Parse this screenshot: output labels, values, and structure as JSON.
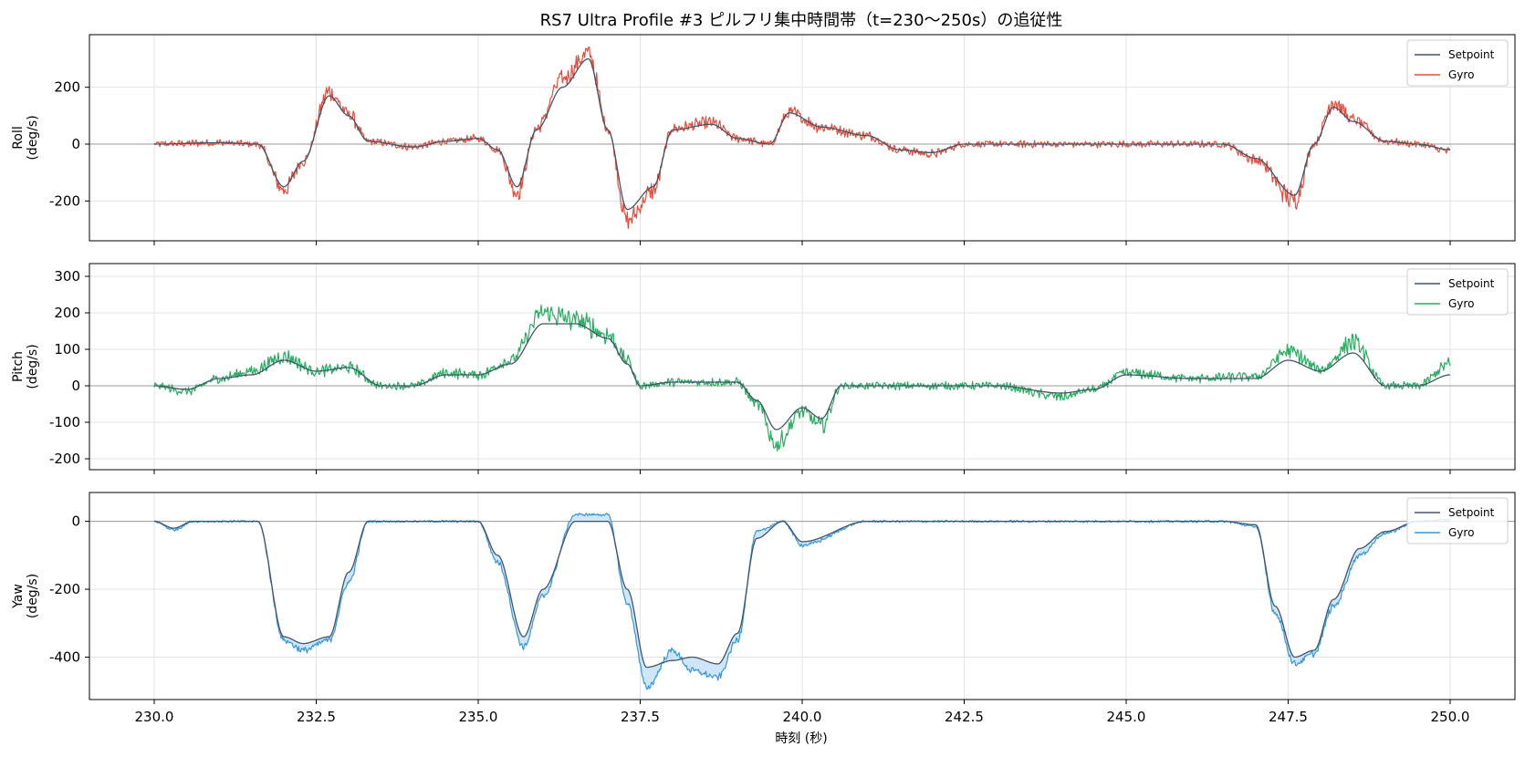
{
  "figure": {
    "title": "RS7 Ultra Profile #3 ピルフリ集中時間帯（t=230〜250s）の追従性",
    "xlabel": "時刻 (秒)"
  },
  "colors": {
    "setpoint": "#44546a",
    "roll": "#e74c3c",
    "pitch": "#27ae60",
    "yaw": "#3498db",
    "yaw_fill": "#aed6f1",
    "grid": "#e3e3e3",
    "zero_line": "#999999"
  },
  "chart_data": [
    {
      "type": "line",
      "panel": "roll",
      "ylabel_line1": "Roll",
      "ylabel_line2": "(deg/s)",
      "xlim": [
        229.0,
        251.0
      ],
      "ylim": [
        -340,
        385
      ],
      "xticks": [
        230.0,
        232.5,
        235.0,
        237.5,
        240.0,
        242.5,
        245.0,
        247.5,
        250.0
      ],
      "yticks": [
        -200,
        0,
        200
      ],
      "ytick_labels": [
        "-200",
        "0",
        "200"
      ],
      "grid": true,
      "legend_position": "top-right",
      "noise": 30,
      "series": [
        {
          "name": "Setpoint",
          "x": [
            230.0,
            231.0,
            231.6,
            232.0,
            232.3,
            232.7,
            233.0,
            233.3,
            234.0,
            234.5,
            235.0,
            235.3,
            235.6,
            235.9,
            236.3,
            236.7,
            237.0,
            237.3,
            237.7,
            238.0,
            238.6,
            239.0,
            239.5,
            239.8,
            240.3,
            241.0,
            241.5,
            242.0,
            242.5,
            243.5,
            245.0,
            246.5,
            247.0,
            247.6,
            247.9,
            248.2,
            248.5,
            249.0,
            249.5,
            250.0
          ],
          "y": [
            0,
            5,
            0,
            -150,
            -60,
            170,
            100,
            10,
            -10,
            10,
            20,
            -20,
            -150,
            50,
            200,
            300,
            50,
            -230,
            -150,
            50,
            70,
            20,
            0,
            110,
            60,
            30,
            -20,
            -30,
            0,
            0,
            0,
            0,
            -50,
            -180,
            0,
            130,
            80,
            10,
            0,
            -20
          ]
        },
        {
          "name": "Gyro",
          "x": [
            230.0,
            231.0,
            231.6,
            232.0,
            232.3,
            232.7,
            233.0,
            233.3,
            234.0,
            234.5,
            235.0,
            235.3,
            235.6,
            235.9,
            236.3,
            236.7,
            237.0,
            237.3,
            237.7,
            238.0,
            238.6,
            239.0,
            239.5,
            239.8,
            240.3,
            241.0,
            241.5,
            242.0,
            242.5,
            243.5,
            245.0,
            246.5,
            247.0,
            247.6,
            247.9,
            248.2,
            248.5,
            249.0,
            249.5,
            250.0
          ],
          "y": [
            0,
            5,
            0,
            -160,
            -60,
            185,
            105,
            10,
            -10,
            10,
            20,
            -20,
            -170,
            55,
            230,
            320,
            55,
            -270,
            -165,
            55,
            75,
            20,
            0,
            110,
            60,
            30,
            -20,
            -35,
            0,
            0,
            0,
            0,
            -55,
            -200,
            0,
            150,
            85,
            10,
            0,
            -25
          ]
        }
      ]
    },
    {
      "type": "line",
      "panel": "pitch",
      "ylabel_line1": "Pitch",
      "ylabel_line2": "(deg/s)",
      "xlim": [
        229.0,
        251.0
      ],
      "ylim": [
        -230,
        335
      ],
      "xticks": [
        230.0,
        232.5,
        235.0,
        237.5,
        240.0,
        242.5,
        245.0,
        247.5,
        250.0
      ],
      "yticks": [
        -200,
        -100,
        0,
        100,
        200,
        300
      ],
      "ytick_labels": [
        "-200",
        "-100",
        "0",
        "100",
        "200",
        "300"
      ],
      "grid": true,
      "legend_position": "top-right",
      "noise": 26,
      "series": [
        {
          "name": "Setpoint",
          "x": [
            230.0,
            230.5,
            231.0,
            231.5,
            232.0,
            232.5,
            233.0,
            233.5,
            234.0,
            234.5,
            235.0,
            235.5,
            236.0,
            236.5,
            237.0,
            237.3,
            237.5,
            238.0,
            238.5,
            239.0,
            239.3,
            239.6,
            240.0,
            240.3,
            240.6,
            241.0,
            242.0,
            243.0,
            244.0,
            244.5,
            245.0,
            246.0,
            247.0,
            247.5,
            248.0,
            248.5,
            249.0,
            249.5,
            250.0
          ],
          "y": [
            0,
            -10,
            20,
            30,
            70,
            40,
            50,
            0,
            0,
            30,
            30,
            60,
            170,
            170,
            130,
            60,
            0,
            10,
            10,
            10,
            -40,
            -120,
            -60,
            -90,
            0,
            0,
            0,
            0,
            -20,
            -10,
            30,
            20,
            20,
            70,
            40,
            90,
            0,
            0,
            30
          ]
        },
        {
          "name": "Gyro",
          "x": [
            230.0,
            230.5,
            231.0,
            231.5,
            232.0,
            232.5,
            233.0,
            233.5,
            234.0,
            234.5,
            235.0,
            235.5,
            236.0,
            236.5,
            237.0,
            237.3,
            237.5,
            238.0,
            238.5,
            239.0,
            239.3,
            239.6,
            240.0,
            240.3,
            240.6,
            241.0,
            242.0,
            243.0,
            244.0,
            244.5,
            245.0,
            246.0,
            247.0,
            247.5,
            248.0,
            248.5,
            249.0,
            249.5,
            250.0
          ],
          "y": [
            0,
            -15,
            20,
            40,
            80,
            40,
            50,
            0,
            0,
            35,
            30,
            70,
            200,
            180,
            140,
            70,
            0,
            10,
            10,
            10,
            -50,
            -160,
            -70,
            -110,
            0,
            0,
            0,
            0,
            -30,
            -10,
            35,
            20,
            25,
            95,
            45,
            120,
            0,
            0,
            60
          ]
        }
      ]
    },
    {
      "type": "line",
      "panel": "yaw",
      "ylabel_line1": "Yaw",
      "ylabel_line2": "(deg/s)",
      "xlim": [
        229.0,
        251.0
      ],
      "ylim": [
        -525,
        85
      ],
      "xticks": [
        230.0,
        232.5,
        235.0,
        237.5,
        240.0,
        242.5,
        245.0,
        247.5,
        250.0
      ],
      "xtick_labels": [
        "230.0",
        "232.5",
        "235.0",
        "237.5",
        "240.0",
        "242.5",
        "245.0",
        "247.5",
        "250.0"
      ],
      "yticks": [
        -400,
        -200,
        0
      ],
      "ytick_labels": [
        "-400",
        "-200",
        "0"
      ],
      "grid": true,
      "legend_position": "top-right",
      "noise": 8,
      "series": [
        {
          "name": "Setpoint",
          "x": [
            230.0,
            230.3,
            230.6,
            231.0,
            231.6,
            232.0,
            232.3,
            232.7,
            233.0,
            233.3,
            234.0,
            235.0,
            235.3,
            235.7,
            236.0,
            236.5,
            237.0,
            237.3,
            237.6,
            238.0,
            238.3,
            238.7,
            239.0,
            239.3,
            239.7,
            240.0,
            241.0,
            242.0,
            243.0,
            245.0,
            246.5,
            247.0,
            247.3,
            247.6,
            247.9,
            248.2,
            248.6,
            249.0,
            249.5,
            250.0
          ],
          "y": [
            0,
            -20,
            0,
            0,
            0,
            -340,
            -360,
            -340,
            -150,
            0,
            0,
            0,
            -100,
            -340,
            -200,
            0,
            0,
            -200,
            -430,
            -410,
            -400,
            -420,
            -330,
            -50,
            0,
            -60,
            0,
            0,
            0,
            0,
            0,
            -10,
            -250,
            -400,
            -380,
            -230,
            -80,
            -30,
            0,
            0
          ]
        },
        {
          "name": "Gyro",
          "x": [
            230.0,
            230.3,
            230.6,
            231.0,
            231.6,
            232.0,
            232.3,
            232.7,
            233.0,
            233.3,
            234.0,
            235.0,
            235.3,
            235.7,
            236.0,
            236.5,
            237.0,
            237.3,
            237.6,
            238.0,
            238.3,
            238.7,
            239.0,
            239.3,
            239.7,
            240.0,
            241.0,
            242.0,
            243.0,
            245.0,
            246.5,
            247.0,
            247.3,
            247.6,
            247.9,
            248.2,
            248.6,
            249.0,
            249.5,
            250.0
          ],
          "y": [
            0,
            -25,
            0,
            0,
            0,
            -350,
            -380,
            -350,
            -180,
            0,
            0,
            0,
            -120,
            -370,
            -220,
            20,
            20,
            -240,
            -490,
            -380,
            -440,
            -460,
            -350,
            -30,
            0,
            -70,
            0,
            0,
            0,
            0,
            0,
            -15,
            -270,
            -420,
            -390,
            -250,
            -100,
            -35,
            0,
            5
          ]
        }
      ]
    }
  ]
}
